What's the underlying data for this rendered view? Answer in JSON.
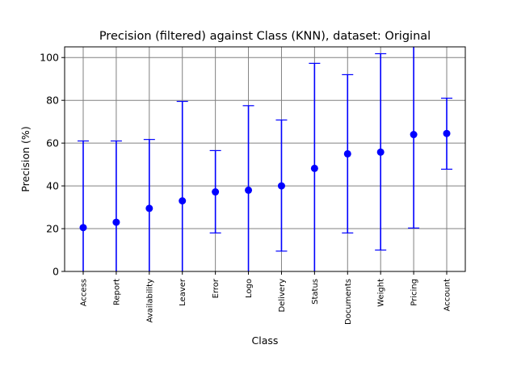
{
  "chart_data": {
    "type": "scatter",
    "title": "Precision (filtered) against Class (KNN), dataset: Original",
    "xlabel": "Class",
    "ylabel": "Precision (%)",
    "ylim": [
      0,
      105
    ],
    "yticks": [
      0,
      20,
      40,
      60,
      80,
      100
    ],
    "grid": true,
    "legend": "none",
    "categories": [
      "Access",
      "Report",
      "Availability",
      "Leaver",
      "Error",
      "Logo",
      "Delivery",
      "Status",
      "Documents",
      "Weight",
      "Pricing",
      "Account"
    ],
    "series": [
      {
        "values": [
          20.5,
          23.0,
          29.5,
          33.0,
          37.2,
          38.0,
          40.0,
          48.2,
          55.0,
          55.8,
          64.0,
          64.5
        ],
        "error_low": [
          0,
          0,
          0,
          0,
          18.0,
          0,
          9.5,
          0,
          18.0,
          10.0,
          20.3,
          47.8
        ],
        "error_high": [
          61.0,
          61.0,
          61.7,
          79.5,
          56.5,
          77.5,
          70.8,
          97.3,
          92.0,
          101.8,
          105,
          81.0
        ]
      }
    ],
    "colors": {
      "marker": "#0000ff",
      "grid": "#808080",
      "axis": "#000000"
    }
  }
}
